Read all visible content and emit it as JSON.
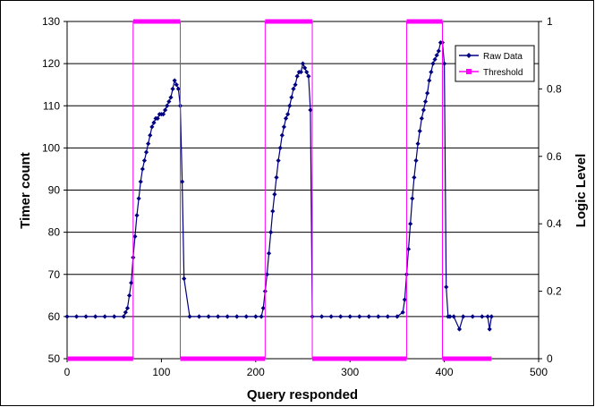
{
  "chart_data": {
    "type": "line",
    "title": "",
    "xlabel": "Query responded",
    "ylabel": "Timer count",
    "y2label": "Logic Level",
    "xlim": [
      0,
      500
    ],
    "ylim": [
      50,
      130
    ],
    "y2lim": [
      0,
      1
    ],
    "x_ticks": [
      "0",
      "100",
      "200",
      "300",
      "400",
      "500"
    ],
    "y_ticks": [
      "50",
      "60",
      "70",
      "80",
      "90",
      "100",
      "110",
      "120",
      "130"
    ],
    "y2_ticks": [
      "0",
      "0.2",
      "0.4",
      "0.6",
      "0.8",
      "1"
    ],
    "grid": "horizontal",
    "legend_position": "top-right",
    "series": [
      {
        "name": "Raw Data",
        "axis": "left",
        "color": "#000080",
        "marker": "diamond",
        "x": [
          0,
          10,
          20,
          30,
          40,
          50,
          60,
          62,
          64,
          66,
          68,
          70,
          72,
          74,
          76,
          78,
          80,
          82,
          84,
          86,
          88,
          90,
          92,
          94,
          96,
          98,
          100,
          102,
          104,
          106,
          108,
          110,
          112,
          114,
          116,
          118,
          120,
          122,
          124,
          130,
          140,
          150,
          160,
          170,
          180,
          190,
          200,
          206,
          208,
          210,
          212,
          214,
          216,
          218,
          220,
          222,
          224,
          226,
          228,
          230,
          232,
          234,
          236,
          238,
          240,
          242,
          244,
          246,
          248,
          250,
          252,
          254,
          256,
          258,
          260,
          270,
          280,
          290,
          300,
          310,
          320,
          330,
          340,
          350,
          356,
          358,
          360,
          362,
          364,
          366,
          368,
          370,
          372,
          374,
          376,
          378,
          380,
          382,
          384,
          386,
          388,
          390,
          392,
          394,
          396,
          398,
          400,
          402,
          404,
          406,
          410,
          416,
          420,
          430,
          440,
          446,
          448,
          450
        ],
        "y": [
          60,
          60,
          60,
          60,
          60,
          60,
          60,
          61,
          62,
          65,
          68,
          74,
          79,
          84,
          88,
          92,
          95,
          97,
          99,
          101,
          103,
          105,
          106,
          107,
          107,
          108,
          108,
          108,
          109,
          110,
          111,
          112,
          114,
          116,
          115,
          114,
          110,
          92,
          69,
          60,
          60,
          60,
          60,
          60,
          60,
          60,
          60,
          60,
          62,
          66,
          70,
          75,
          80,
          85,
          89,
          93,
          97,
          100,
          103,
          105,
          107,
          108,
          110,
          112,
          114,
          115,
          117,
          118,
          118,
          120,
          119,
          118,
          117,
          109,
          60,
          60,
          60,
          60,
          60,
          60,
          60,
          60,
          60,
          60,
          61,
          64,
          70,
          76,
          82,
          88,
          93,
          97,
          101,
          104,
          107,
          109,
          111,
          113,
          116,
          118,
          120,
          121,
          122,
          123,
          125,
          125,
          120,
          67,
          60,
          60,
          60,
          57,
          60,
          60,
          60,
          60,
          57,
          60
        ]
      },
      {
        "name": "Threshold",
        "axis": "right",
        "color": "#ff00ff",
        "marker": "square",
        "x": [
          0,
          70,
          70,
          120,
          120,
          210,
          210,
          260,
          260,
          360,
          360,
          398,
          398,
          450
        ],
        "y": [
          0,
          0,
          1,
          1,
          0,
          0,
          1,
          1,
          0,
          0,
          1,
          1,
          0,
          0
        ]
      }
    ]
  }
}
